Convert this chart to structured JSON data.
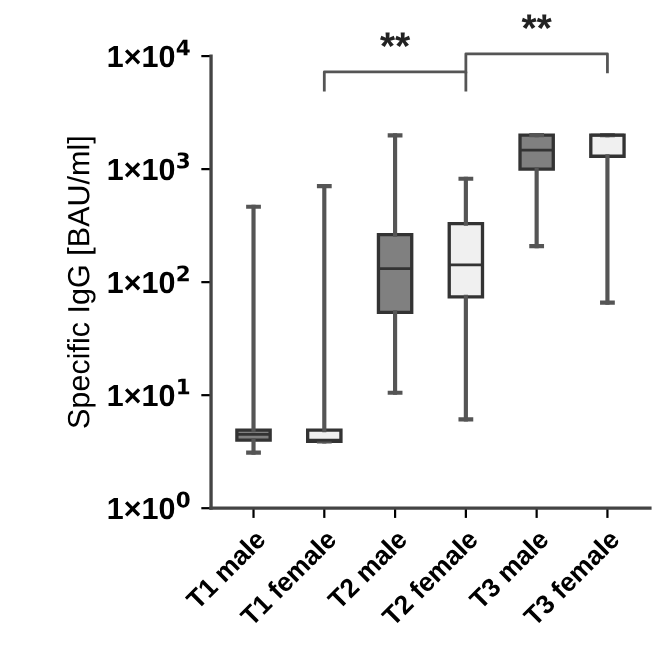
{
  "chart_data": {
    "type": "box",
    "ylabel": "Specific IgG [BAU/ml]",
    "log": true,
    "categories": [
      "T1 male",
      "T1 female",
      "T2 male",
      "T2 female",
      "T3 male",
      "T3 female"
    ],
    "colors": [
      "#808080",
      "#f0f0f0",
      "#808080",
      "#f0f0f0",
      "#808080",
      "#f0f0f0"
    ],
    "boxes": [
      {
        "low": 3.1,
        "q1": 4.0,
        "median": 4.5,
        "q3": 4.9,
        "high": 465
      },
      {
        "low": 3.9,
        "q1": 3.9,
        "median": 4.0,
        "q3": 4.9,
        "high": 708
      },
      {
        "low": 10.5,
        "q1": 54,
        "median": 132,
        "q3": 263,
        "high": 1990
      },
      {
        "low": 6.1,
        "q1": 74,
        "median": 142,
        "q3": 330,
        "high": 822
      },
      {
        "low": 208,
        "q1": 1000,
        "median": 1470,
        "q3": 2000,
        "high": 2000
      },
      {
        "low": 66,
        "q1": 1300,
        "median": 2000,
        "q3": 2000,
        "high": 2000
      }
    ],
    "ylim": [
      1,
      10000
    ],
    "yticks": [
      {
        "value": 1,
        "label": "1×10$^{0}$"
      },
      {
        "value": 10,
        "label": "1×10$^{1}$"
      },
      {
        "value": 100,
        "label": "1×10$^{2}$"
      },
      {
        "value": 1000,
        "label": "1×10$^{3}$"
      },
      {
        "value": 10000,
        "label": "1×10$^{4}$"
      }
    ],
    "annotations": [
      "**",
      "**"
    ],
    "grid": false
  }
}
